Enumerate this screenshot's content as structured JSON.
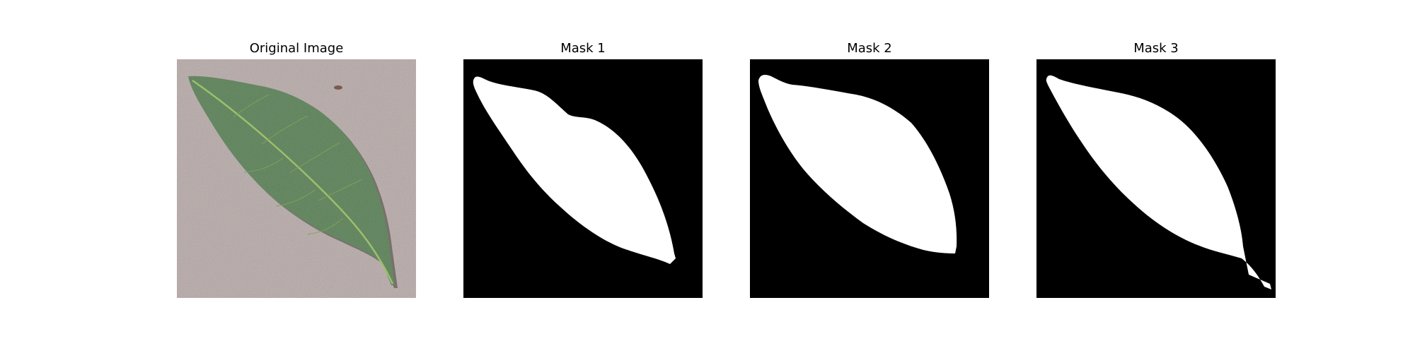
{
  "panels": [
    {
      "title": "Original Image",
      "kind": "photo"
    },
    {
      "title": "Mask 1",
      "kind": "mask"
    },
    {
      "title": "Mask 2",
      "kind": "mask"
    },
    {
      "title": "Mask 3",
      "kind": "mask"
    }
  ],
  "colors": {
    "background_surface": "#b7a9a6",
    "leaf": "#4d7a48",
    "leaf_vein": "#9cbf6a",
    "mask_bg": "#000000",
    "mask_fg": "#ffffff"
  }
}
